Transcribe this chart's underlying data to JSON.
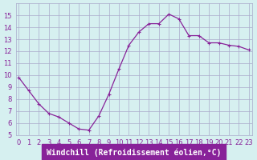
{
  "x": [
    0,
    1,
    2,
    3,
    4,
    5,
    6,
    7,
    8,
    9,
    10,
    11,
    12,
    13,
    14,
    15,
    16,
    17,
    18,
    19,
    20,
    21,
    22,
    23
  ],
  "y": [
    9.8,
    8.7,
    7.6,
    6.8,
    6.5,
    6.0,
    5.5,
    5.4,
    6.6,
    8.4,
    10.5,
    12.5,
    13.6,
    14.3,
    14.3,
    15.1,
    14.7,
    13.3,
    13.3,
    12.7,
    12.7,
    12.5,
    12.4,
    12.1
  ],
  "line_color": "#882299",
  "marker_color": "#882299",
  "bg_color": "#d6f0f0",
  "grid_color": "#aaaacc",
  "xlabel": "Windchill (Refroidissement éolien,°C)",
  "xlabel_color": "#ffffff",
  "xlabel_bg": "#882299",
  "ylim": [
    5,
    16
  ],
  "xlim": [
    0,
    23
  ],
  "yticks": [
    5,
    6,
    7,
    8,
    9,
    10,
    11,
    12,
    13,
    14,
    15
  ],
  "xticks": [
    0,
    1,
    2,
    3,
    4,
    5,
    6,
    7,
    8,
    9,
    10,
    11,
    12,
    13,
    14,
    15,
    16,
    17,
    18,
    19,
    20,
    21,
    22,
    23
  ],
  "tick_fontsize": 6,
  "xlabel_fontsize": 7,
  "axis_color": "#882299"
}
